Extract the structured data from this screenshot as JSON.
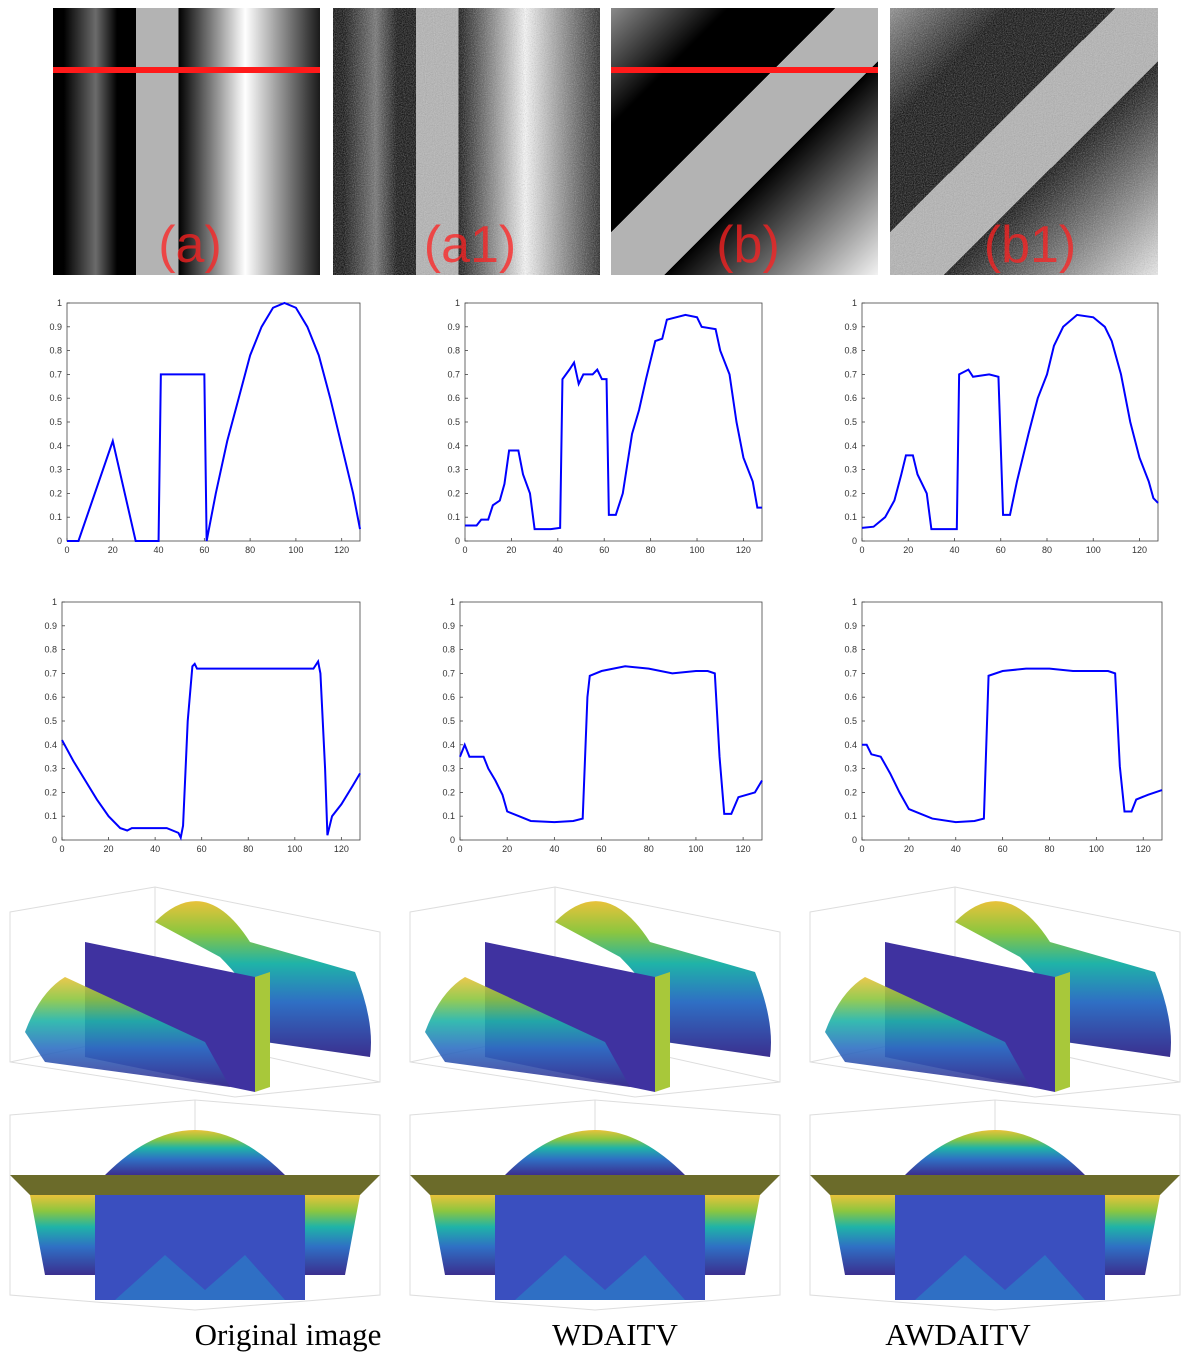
{
  "panels": {
    "labels": [
      "(a)",
      "(a1)",
      "(b)",
      "(b1)"
    ]
  },
  "captions": [
    "Original image",
    "WDAITV",
    "AWDAITV"
  ],
  "chart_data": [
    {
      "type": "line",
      "color": "#0000ff",
      "xlim": [
        0,
        128
      ],
      "ylim": [
        0,
        1
      ],
      "xticks": [
        0,
        20,
        40,
        60,
        80,
        100,
        120
      ],
      "yticks": [
        0,
        0.1,
        0.2,
        0.3,
        0.4,
        0.5,
        0.6,
        0.7,
        0.8,
        0.9,
        1
      ],
      "x": [
        0,
        5,
        20,
        30,
        40,
        41,
        60,
        61,
        65,
        70,
        75,
        80,
        85,
        90,
        95,
        100,
        105,
        110,
        115,
        120,
        125,
        128
      ],
      "values": [
        0,
        0,
        0.42,
        0,
        0,
        0.7,
        0.7,
        0,
        0.2,
        0.42,
        0.6,
        0.78,
        0.9,
        0.98,
        1.0,
        0.98,
        0.9,
        0.78,
        0.6,
        0.4,
        0.2,
        0.05
      ]
    },
    {
      "type": "line",
      "color": "#0000ff",
      "xlim": [
        0,
        128
      ],
      "ylim": [
        0,
        1
      ],
      "xticks": [
        0,
        20,
        40,
        60,
        80,
        100,
        120
      ],
      "yticks": [
        0,
        0.1,
        0.2,
        0.3,
        0.4,
        0.5,
        0.6,
        0.7,
        0.8,
        0.9,
        1
      ],
      "x": [
        0,
        5,
        7,
        10,
        12,
        15,
        17,
        19,
        23,
        25,
        28,
        30,
        37,
        41,
        42,
        45,
        47,
        49,
        51,
        55,
        57,
        59,
        61,
        62,
        65,
        68,
        72,
        75,
        78,
        82,
        85,
        87,
        95,
        100,
        102,
        108,
        110,
        114,
        117,
        120,
        124,
        126,
        128
      ],
      "values": [
        0.065,
        0.065,
        0.09,
        0.09,
        0.15,
        0.17,
        0.24,
        0.38,
        0.38,
        0.28,
        0.2,
        0.05,
        0.05,
        0.055,
        0.68,
        0.72,
        0.75,
        0.66,
        0.7,
        0.7,
        0.72,
        0.68,
        0.68,
        0.11,
        0.11,
        0.2,
        0.45,
        0.55,
        0.68,
        0.84,
        0.85,
        0.93,
        0.95,
        0.94,
        0.9,
        0.89,
        0.8,
        0.7,
        0.5,
        0.35,
        0.25,
        0.14,
        0.14
      ]
    },
    {
      "type": "line",
      "color": "#0000ff",
      "xlim": [
        0,
        128
      ],
      "ylim": [
        0,
        1
      ],
      "xticks": [
        0,
        20,
        40,
        60,
        80,
        100,
        120
      ],
      "yticks": [
        0,
        0.1,
        0.2,
        0.3,
        0.4,
        0.5,
        0.6,
        0.7,
        0.8,
        0.9,
        1
      ],
      "x": [
        0,
        5,
        10,
        14,
        17,
        19,
        22,
        24,
        28,
        30,
        37,
        41,
        42,
        46,
        48,
        55,
        59,
        61,
        64,
        67,
        72,
        76,
        80,
        83,
        87,
        93,
        100,
        105,
        108,
        112,
        116,
        120,
        124,
        126,
        128
      ],
      "values": [
        0.055,
        0.06,
        0.1,
        0.17,
        0.28,
        0.36,
        0.36,
        0.28,
        0.2,
        0.05,
        0.05,
        0.05,
        0.7,
        0.72,
        0.69,
        0.7,
        0.69,
        0.11,
        0.11,
        0.25,
        0.45,
        0.6,
        0.7,
        0.82,
        0.9,
        0.95,
        0.94,
        0.9,
        0.84,
        0.7,
        0.5,
        0.35,
        0.25,
        0.18,
        0.16
      ]
    },
    {
      "type": "line",
      "color": "#0000ff",
      "xlim": [
        0,
        128
      ],
      "ylim": [
        0,
        1
      ],
      "xticks": [
        0,
        20,
        40,
        60,
        80,
        100,
        120
      ],
      "yticks": [
        0,
        0.1,
        0.2,
        0.3,
        0.4,
        0.5,
        0.6,
        0.7,
        0.8,
        0.9,
        1
      ],
      "x": [
        0,
        5,
        10,
        15,
        20,
        25,
        28,
        30,
        45,
        50,
        51,
        52,
        54,
        56,
        57,
        58,
        108,
        110,
        111,
        113,
        114,
        116,
        120,
        125,
        128
      ],
      "values": [
        0.42,
        0.33,
        0.25,
        0.17,
        0.1,
        0.05,
        0.04,
        0.05,
        0.05,
        0.03,
        0.01,
        0.06,
        0.5,
        0.73,
        0.74,
        0.72,
        0.72,
        0.75,
        0.7,
        0.3,
        0.02,
        0.1,
        0.15,
        0.23,
        0.28
      ]
    },
    {
      "type": "line",
      "color": "#0000ff",
      "xlim": [
        0,
        128
      ],
      "ylim": [
        0,
        1
      ],
      "xticks": [
        0,
        20,
        40,
        60,
        80,
        100,
        120
      ],
      "yticks": [
        0,
        0.1,
        0.2,
        0.3,
        0.4,
        0.5,
        0.6,
        0.7,
        0.8,
        0.9,
        1
      ],
      "x": [
        0,
        2,
        4,
        10,
        12,
        15,
        18,
        20,
        25,
        30,
        40,
        48,
        52,
        54,
        55,
        60,
        70,
        80,
        90,
        100,
        105,
        108,
        110,
        112,
        115,
        118,
        125,
        128
      ],
      "values": [
        0.35,
        0.4,
        0.35,
        0.35,
        0.3,
        0.25,
        0.19,
        0.12,
        0.1,
        0.08,
        0.075,
        0.08,
        0.09,
        0.6,
        0.69,
        0.71,
        0.73,
        0.72,
        0.7,
        0.71,
        0.71,
        0.7,
        0.35,
        0.11,
        0.11,
        0.18,
        0.2,
        0.25
      ]
    },
    {
      "type": "line",
      "color": "#0000ff",
      "xlim": [
        0,
        128
      ],
      "ylim": [
        0,
        1
      ],
      "xticks": [
        0,
        20,
        40,
        60,
        80,
        100,
        120
      ],
      "yticks": [
        0,
        0.1,
        0.2,
        0.3,
        0.4,
        0.5,
        0.6,
        0.7,
        0.8,
        0.9,
        1
      ],
      "x": [
        0,
        2,
        4,
        8,
        12,
        16,
        20,
        25,
        30,
        40,
        48,
        52,
        54,
        60,
        70,
        80,
        90,
        100,
        105,
        108,
        110,
        112,
        115,
        117,
        122,
        128
      ],
      "values": [
        0.4,
        0.4,
        0.36,
        0.35,
        0.28,
        0.2,
        0.13,
        0.11,
        0.09,
        0.075,
        0.08,
        0.09,
        0.69,
        0.71,
        0.72,
        0.72,
        0.71,
        0.71,
        0.71,
        0.7,
        0.31,
        0.12,
        0.12,
        0.17,
        0.19,
        0.21
      ]
    }
  ]
}
